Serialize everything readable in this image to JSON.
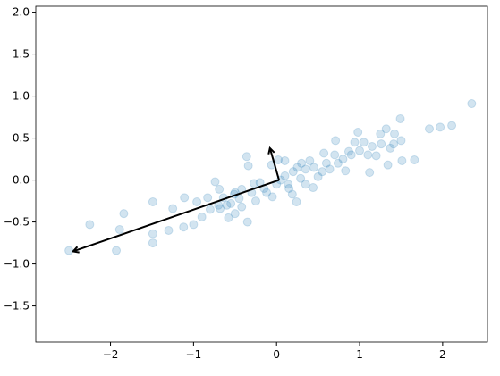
{
  "chart_data": {
    "type": "scatter",
    "x": [
      -2.5,
      -2.25,
      -1.84,
      -1.93,
      -1.89,
      -1.49,
      -1.49,
      -1.49,
      -1.3,
      -1.25,
      -1.11,
      -1.12,
      -1.0,
      -0.96,
      -0.9,
      -0.83,
      -0.74,
      -0.69,
      -0.68,
      -0.64,
      -0.58,
      -0.55,
      -0.51,
      -0.42,
      -0.36,
      -0.34,
      -0.42,
      -0.27,
      -0.2,
      -0.12,
      -0.06,
      0.02,
      0.1,
      0.14,
      0.19,
      0.24,
      0.29,
      0.35,
      0.4,
      0.44,
      0.5,
      0.57,
      0.64,
      0.71,
      0.74,
      0.83,
      0.87,
      0.94,
      0.98,
      1.05,
      1.12,
      1.2,
      1.26,
      1.32,
      1.37,
      1.42,
      1.49,
      1.51,
      1.66,
      1.84,
      1.97,
      2.11,
      2.35,
      1.34,
      1.5,
      1.41,
      -0.6,
      -0.5,
      -0.45,
      -0.3,
      -0.25,
      -0.15,
      0.0,
      0.1,
      0.2,
      0.3,
      0.35,
      0.45,
      0.55,
      0.6,
      0.7,
      0.8,
      0.9,
      1.0,
      1.1,
      1.15,
      1.25,
      -0.8,
      -0.7,
      -0.35,
      -0.5,
      0.25,
      0.15,
      -0.05,
      0.05
    ],
    "y": [
      -0.84,
      -0.53,
      -0.4,
      -0.84,
      -0.59,
      -0.26,
      -0.64,
      -0.75,
      -0.6,
      -0.34,
      -0.21,
      -0.56,
      -0.53,
      -0.26,
      -0.44,
      -0.21,
      -0.02,
      -0.11,
      -0.34,
      -0.21,
      -0.45,
      -0.28,
      -0.17,
      -0.32,
      0.28,
      0.17,
      -0.11,
      -0.04,
      -0.03,
      -0.15,
      0.18,
      0.24,
      0.23,
      -0.05,
      -0.17,
      -0.26,
      0.02,
      0.13,
      0.23,
      -0.09,
      0.04,
      0.32,
      0.13,
      0.47,
      0.2,
      0.11,
      0.34,
      0.45,
      0.57,
      0.45,
      0.09,
      0.29,
      0.43,
      0.61,
      0.38,
      0.55,
      0.73,
      0.23,
      0.24,
      0.61,
      0.63,
      0.65,
      0.91,
      0.18,
      0.47,
      0.43,
      -0.3,
      -0.4,
      -0.22,
      -0.15,
      -0.25,
      -0.1,
      -0.05,
      0.05,
      0.1,
      0.2,
      -0.05,
      0.15,
      0.1,
      0.2,
      0.3,
      0.25,
      0.3,
      0.35,
      0.3,
      0.4,
      0.55,
      -0.35,
      -0.3,
      -0.5,
      -0.15,
      0.15,
      -0.1,
      -0.2,
      0.0
    ],
    "color": "#1f77b4",
    "arrows": [
      {
        "start": [
          0.03,
          0.0
        ],
        "end": [
          -2.45,
          -0.85
        ]
      },
      {
        "start": [
          0.03,
          0.0
        ],
        "end": [
          -0.08,
          0.38
        ]
      }
    ],
    "xlim": [
      -2.9,
      2.54
    ],
    "ylim": [
      -1.93,
      2.07
    ],
    "xticks": [
      {
        "value": -2,
        "label": "−2"
      },
      {
        "value": -1,
        "label": "−1"
      },
      0,
      1,
      2
    ],
    "yticks": [
      {
        "value": -1.5,
        "label": "−1.5"
      },
      {
        "value": -1.0,
        "label": "−1.0"
      },
      {
        "value": -0.5,
        "label": "−0.5"
      },
      {
        "value": 0.0,
        "label": "0.0"
      },
      {
        "value": 0.5,
        "label": "0.5"
      },
      {
        "value": 1.0,
        "label": "1.0"
      },
      {
        "value": 1.5,
        "label": "1.5"
      },
      {
        "value": 2.0,
        "label": "2.0"
      }
    ]
  }
}
